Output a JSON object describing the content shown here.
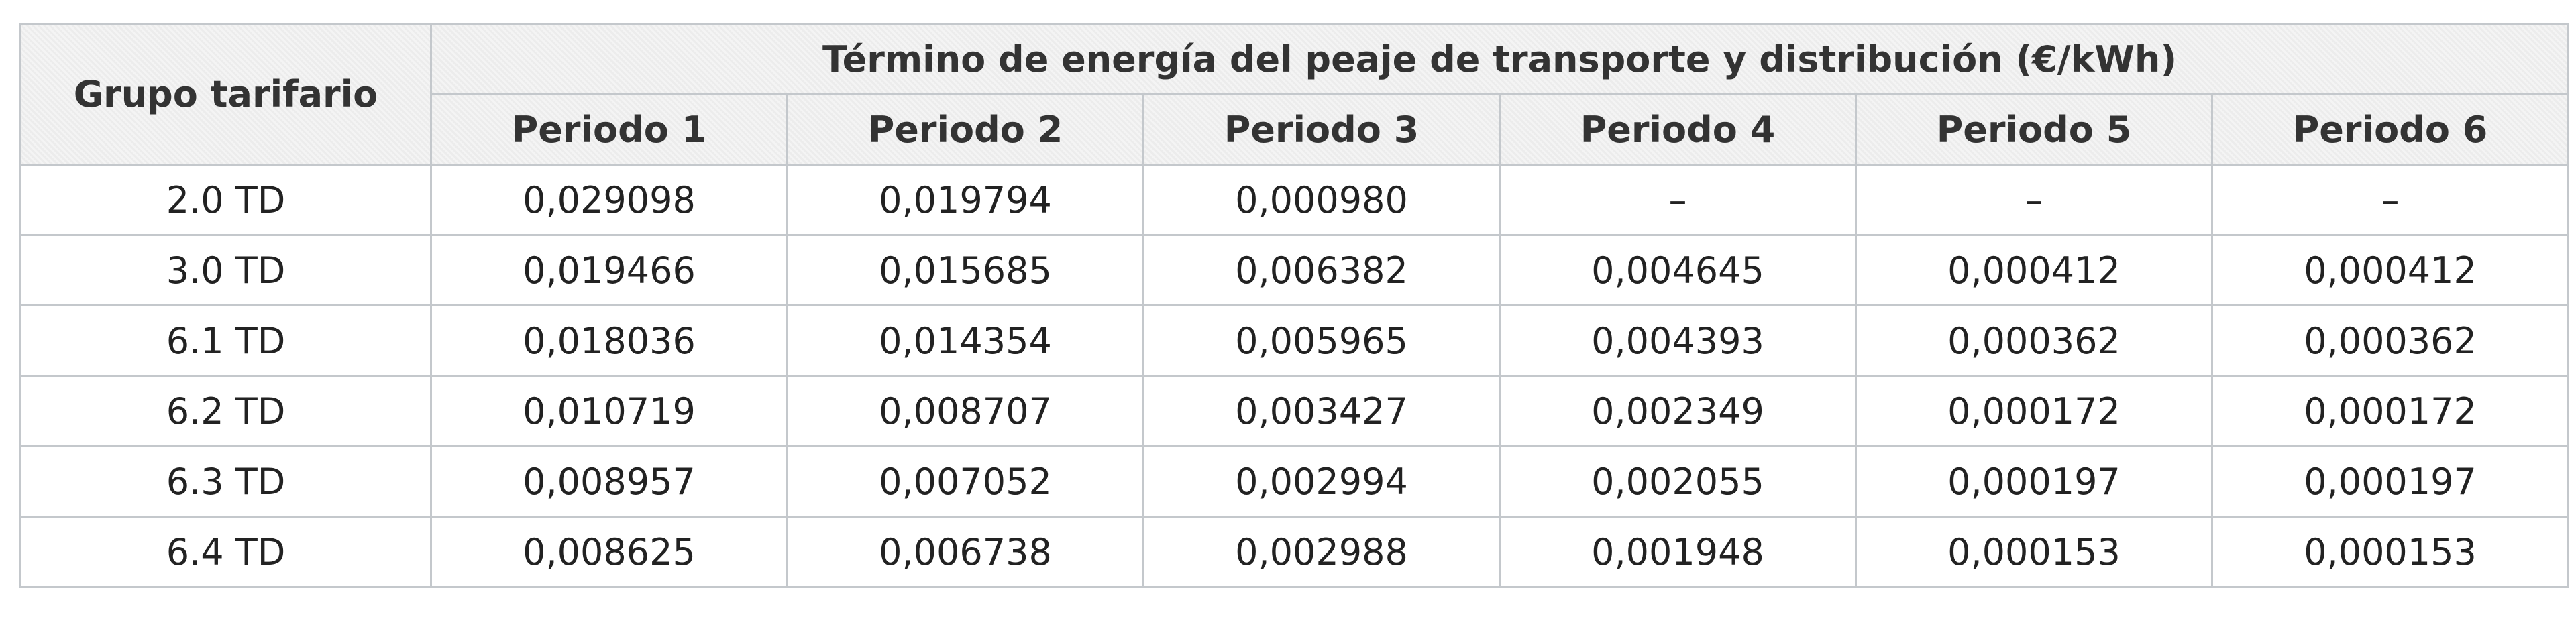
{
  "table": {
    "corner": "Grupo tarifario",
    "group_header": "Término de energía del peaje de transporte y distribución (€/kWh)",
    "columns": [
      "Periodo 1",
      "Periodo 2",
      "Periodo 3",
      "Periodo 4",
      "Periodo 5",
      "Periodo 6"
    ],
    "rows": [
      [
        "2.0 TD",
        "0,029098",
        "0,019794",
        "0,000980",
        "–",
        "–",
        "–"
      ],
      [
        "3.0 TD",
        "0,019466",
        "0,015685",
        "0,006382",
        "0,004645",
        "0,000412",
        "0,000412"
      ],
      [
        "6.1 TD",
        "0,018036",
        "0,014354",
        "0,005965",
        "0,004393",
        "0,000362",
        "0,000362"
      ],
      [
        "6.2 TD",
        "0,010719",
        "0,008707",
        "0,003427",
        "0,002349",
        "0,000172",
        "0,000172"
      ],
      [
        "6.3 TD",
        "0,008957",
        "0,007052",
        "0,002994",
        "0,002055",
        "0,000197",
        "0,000197"
      ],
      [
        "6.4 TD",
        "0,008625",
        "0,006738",
        "0,002988",
        "0,001948",
        "0,000153",
        "0,000153"
      ]
    ]
  }
}
